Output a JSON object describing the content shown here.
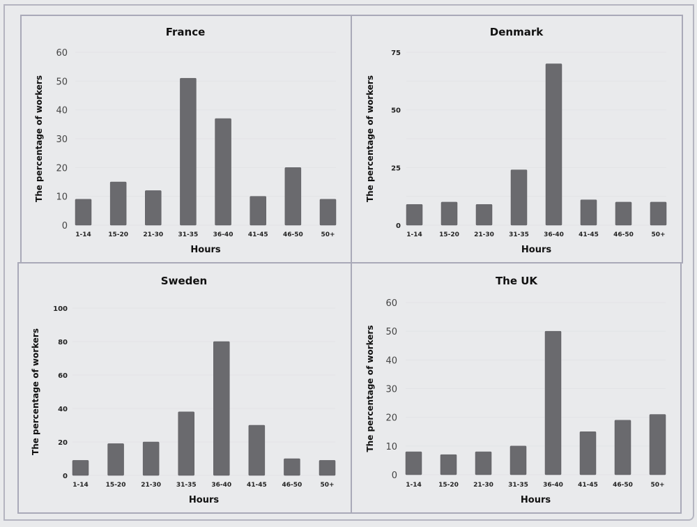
{
  "chart_data": [
    {
      "type": "bar",
      "title": "France",
      "xlabel": "Hours",
      "ylabel": "The percentage of workers",
      "categories": [
        "1-14",
        "15-20",
        "21-30",
        "31-35",
        "36-40",
        "41-45",
        "46-50",
        "50+"
      ],
      "values": [
        9,
        15,
        12,
        51,
        37,
        10,
        20,
        9
      ],
      "ylim": [
        0,
        60
      ],
      "yticks": [
        0,
        10,
        20,
        30,
        40,
        50,
        60
      ],
      "ytick_labels": [
        "0",
        "10",
        "20",
        "30",
        "40",
        "50",
        "60"
      ],
      "gridlines": [
        0,
        10,
        20,
        30,
        40,
        50,
        60
      ],
      "grid": true,
      "bar_color": "#6a6a6e"
    },
    {
      "type": "bar",
      "title": "Denmark",
      "xlabel": "Hours",
      "ylabel": "The percentage of workers",
      "categories": [
        "1-14",
        "15-20",
        "21-30",
        "31-35",
        "36-40",
        "41-45",
        "46-50",
        "50+"
      ],
      "values": [
        9,
        10,
        9,
        24,
        70,
        11,
        10,
        10
      ],
      "ylim": [
        0,
        75
      ],
      "yticks": [
        0,
        25,
        50,
        75
      ],
      "ytick_labels": [
        "0",
        "25",
        "50",
        "75"
      ],
      "gridlines": [
        0,
        12.5,
        25,
        37.5,
        50,
        62.5,
        75
      ],
      "grid": true,
      "bar_color": "#6a6a6e"
    },
    {
      "type": "bar",
      "title": "Sweden",
      "xlabel": "Hours",
      "ylabel": "The percentage of workers",
      "categories": [
        "1-14",
        "15-20",
        "21-30",
        "31-35",
        "36-40",
        "41-45",
        "46-50",
        "50+"
      ],
      "values": [
        9,
        19,
        20,
        38,
        80,
        30,
        10,
        9
      ],
      "ylim": [
        0,
        100
      ],
      "yticks": [
        0,
        20,
        40,
        60,
        80,
        100
      ],
      "ytick_labels": [
        "0",
        "20",
        "40",
        "60",
        "80",
        "100"
      ],
      "gridlines": [
        0,
        20,
        40,
        60,
        80,
        100
      ],
      "grid": true,
      "bar_color": "#6a6a6e"
    },
    {
      "type": "bar",
      "title": "The UK",
      "xlabel": "Hours",
      "ylabel": "The percentage of workers",
      "categories": [
        "1-14",
        "15-20",
        "21-30",
        "31-35",
        "36-40",
        "41-45",
        "46-50",
        "50+"
      ],
      "values": [
        8,
        7,
        8,
        10,
        50,
        15,
        19,
        21
      ],
      "ylim": [
        0,
        60
      ],
      "yticks": [
        0,
        10,
        20,
        30,
        40,
        50,
        60
      ],
      "ytick_labels": [
        "0",
        "10",
        "20",
        "30",
        "40",
        "50",
        "60"
      ],
      "gridlines": [
        0,
        10,
        20,
        30,
        40,
        50,
        60
      ],
      "grid": true,
      "bar_color": "#6a6a6e"
    }
  ]
}
